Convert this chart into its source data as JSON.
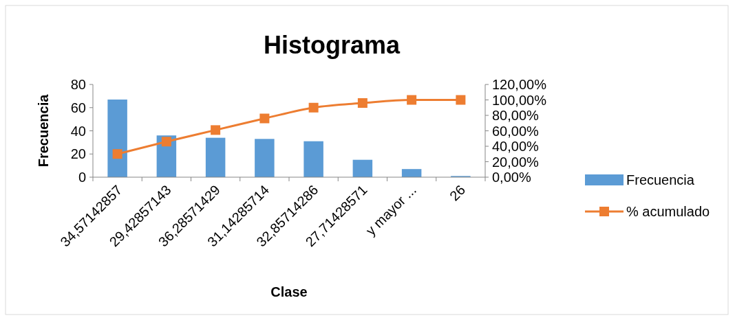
{
  "chart_data": {
    "type": "bar",
    "title": "Histograma",
    "xlabel": "Clase",
    "ylabel": "Frecuencia",
    "categories": [
      "34,57142857",
      "29,42857143",
      "36,28571429",
      "31,14285714",
      "32,85714286",
      "27,71428571",
      "y mayor ...",
      "26"
    ],
    "series": [
      {
        "name": "Frecuencia",
        "color": "#5b9bd5",
        "values": [
          67,
          36,
          34,
          33,
          31,
          15,
          7,
          1
        ]
      },
      {
        "name": "% acumulado",
        "type": "line",
        "axis": "y2",
        "color": "#ed7d31",
        "marker": "square",
        "values": [
          30,
          46,
          61,
          76,
          90,
          96,
          100,
          100
        ]
      }
    ],
    "ylim": [
      0,
      80
    ],
    "yticks": [
      0,
      20,
      40,
      60,
      80
    ],
    "y2lim": [
      0,
      120
    ],
    "y2ticks": [
      {
        "value": 0,
        "label": "0,00%"
      },
      {
        "value": 20,
        "label": "20,00%"
      },
      {
        "value": 40,
        "label": "40,00%"
      },
      {
        "value": 60,
        "label": "60,00%"
      },
      {
        "value": 80,
        "label": "80,00%"
      },
      {
        "value": 100,
        "label": "100,00%"
      },
      {
        "value": 120,
        "label": "120,00%"
      }
    ],
    "legend": "right"
  }
}
